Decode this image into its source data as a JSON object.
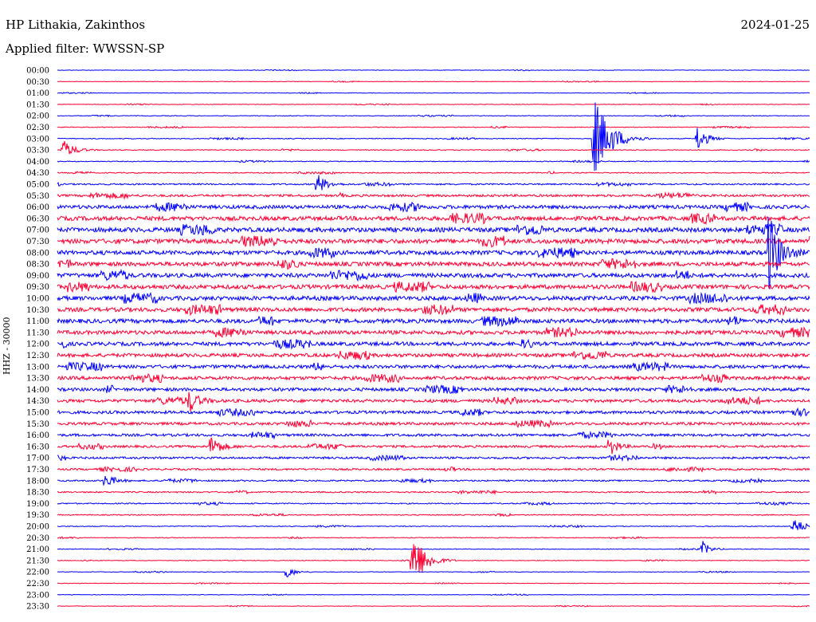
{
  "header": {
    "station": "HP Lithakia, Zakinthos",
    "date": "2024-01-25",
    "filter": "Applied filter: WWSSN-SP"
  },
  "chart_data": {
    "type": "line",
    "ylabel": "HHZ - 30000",
    "colors": {
      "blue": "#0000ff",
      "red": "#ff0033"
    },
    "rows": [
      "00:00",
      "00:30",
      "01:00",
      "01:30",
      "02:00",
      "02:30",
      "03:00",
      "03:30",
      "04:00",
      "04:30",
      "05:00",
      "05:30",
      "06:00",
      "06:30",
      "07:00",
      "07:30",
      "08:00",
      "08:30",
      "09:00",
      "09:30",
      "10:00",
      "10:30",
      "11:00",
      "11:30",
      "12:00",
      "12:30",
      "13:00",
      "13:30",
      "14:00",
      "14:30",
      "15:00",
      "15:30",
      "16:00",
      "16:30",
      "17:00",
      "17:30",
      "18:00",
      "18:30",
      "19:00",
      "19:30",
      "20:00",
      "20:30",
      "21:00",
      "21:30",
      "22:00",
      "22:30",
      "23:00",
      "23:30"
    ],
    "noise_level": [
      0.3,
      0.3,
      0.3,
      0.35,
      0.4,
      0.45,
      0.5,
      0.5,
      0.5,
      0.6,
      0.9,
      1.4,
      2.2,
      2.6,
      2.8,
      2.8,
      2.6,
      2.6,
      2.6,
      2.6,
      2.6,
      2.5,
      2.5,
      2.4,
      2.3,
      2.2,
      2.1,
      2.1,
      2.0,
      1.9,
      1.8,
      1.7,
      1.6,
      1.4,
      1.3,
      1.1,
      0.9,
      0.8,
      0.7,
      0.6,
      0.5,
      0.45,
      0.4,
      0.4,
      0.35,
      0.3,
      0.3,
      0.3
    ],
    "events": [
      {
        "row": 6,
        "x": 745,
        "amp": 55,
        "width": 18
      },
      {
        "row": 6,
        "x": 875,
        "amp": 18,
        "width": 10
      },
      {
        "row": 7,
        "x": 78,
        "amp": 14,
        "width": 12
      },
      {
        "row": 10,
        "x": 398,
        "amp": 14,
        "width": 10
      },
      {
        "row": 16,
        "x": 963,
        "amp": 60,
        "width": 12
      },
      {
        "row": 29,
        "x": 238,
        "amp": 14,
        "width": 10
      },
      {
        "row": 33,
        "x": 265,
        "amp": 16,
        "width": 10
      },
      {
        "row": 33,
        "x": 765,
        "amp": 14,
        "width": 8
      },
      {
        "row": 36,
        "x": 132,
        "amp": 10,
        "width": 10
      },
      {
        "row": 40,
        "x": 995,
        "amp": 12,
        "width": 12
      },
      {
        "row": 43,
        "x": 517,
        "amp": 40,
        "width": 14
      },
      {
        "row": 42,
        "x": 882,
        "amp": 10,
        "width": 8
      },
      {
        "row": 44,
        "x": 360,
        "amp": 9,
        "width": 8
      }
    ]
  }
}
